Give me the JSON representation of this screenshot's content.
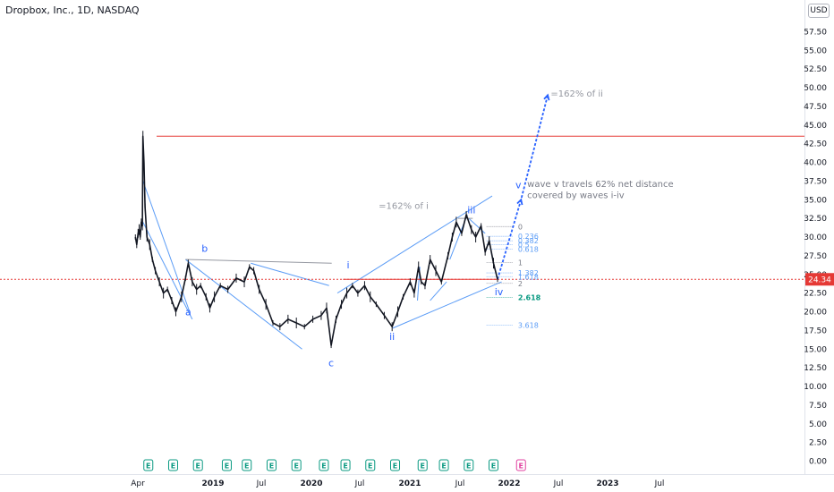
{
  "header": {
    "title": "Dropbox, Inc., 1D, NASDAQ",
    "currency": "USD"
  },
  "chart_data": {
    "type": "candlestick",
    "symbol": "Dropbox, Inc.",
    "interval": "1D",
    "exchange": "NASDAQ",
    "y_ticks": [
      "57.50",
      "55.00",
      "52.50",
      "50.00",
      "47.50",
      "45.00",
      "42.50",
      "40.00",
      "37.50",
      "35.00",
      "32.50",
      "30.00",
      "27.50",
      "25.00",
      "22.50",
      "20.00",
      "17.50",
      "15.00",
      "12.50",
      "10.00",
      "7.50",
      "5.00",
      "2.50",
      "0.00"
    ],
    "x_ticks": [
      "Apr",
      "2019",
      "Jul",
      "2020",
      "Jul",
      "2021",
      "Jul",
      "2022",
      "Jul",
      "2023",
      "Jul"
    ],
    "ylim": [
      0,
      58.5
    ],
    "last_price": "24.34",
    "resistance_level": 43.5,
    "price_path": [
      [
        "2018-03-23",
        30
      ],
      [
        "2018-03-28",
        29
      ],
      [
        "2018-04-02",
        30.5
      ],
      [
        "2018-04-06",
        31
      ],
      [
        "2018-04-10",
        30
      ],
      [
        "2018-04-14",
        32
      ],
      [
        "2018-04-18",
        31.5
      ],
      [
        "2018-04-20",
        43.5
      ],
      [
        "2018-04-24",
        40
      ],
      [
        "2018-04-28",
        34
      ],
      [
        "2018-05-05",
        30
      ],
      [
        "2018-05-15",
        29
      ],
      [
        "2018-05-25",
        27
      ],
      [
        "2018-06-05",
        25.5
      ],
      [
        "2018-06-20",
        24
      ],
      [
        "2018-07-05",
        22.5
      ],
      [
        "2018-07-20",
        23
      ],
      [
        "2018-08-05",
        21.5
      ],
      [
        "2018-08-20",
        20
      ],
      [
        "2018-09-10",
        22
      ],
      [
        "2018-09-25",
        24.5
      ],
      [
        "2018-10-05",
        26.5
      ],
      [
        "2018-10-20",
        24
      ],
      [
        "2018-11-05",
        23
      ],
      [
        "2018-11-20",
        23.5
      ],
      [
        "2018-12-10",
        22
      ],
      [
        "2018-12-24",
        20.5
      ],
      [
        "2019-01-10",
        22
      ],
      [
        "2019-02-01",
        23.5
      ],
      [
        "2019-03-01",
        23
      ],
      [
        "2019-04-01",
        24.5
      ],
      [
        "2019-05-01",
        24
      ],
      [
        "2019-05-20",
        26
      ],
      [
        "2019-06-05",
        25.5
      ],
      [
        "2019-06-25",
        23
      ],
      [
        "2019-07-20",
        21
      ],
      [
        "2019-08-15",
        18.5
      ],
      [
        "2019-09-10",
        18
      ],
      [
        "2019-10-10",
        19
      ],
      [
        "2019-11-10",
        18.5
      ],
      [
        "2019-12-10",
        18
      ],
      [
        "2020-01-10",
        19
      ],
      [
        "2020-02-10",
        19.5
      ],
      [
        "2020-03-01",
        20.5
      ],
      [
        "2020-03-18",
        15.5
      ],
      [
        "2020-04-05",
        19
      ],
      [
        "2020-04-25",
        21
      ],
      [
        "2020-05-15",
        22.5
      ],
      [
        "2020-06-05",
        23.5
      ],
      [
        "2020-06-25",
        22.5
      ],
      [
        "2020-07-20",
        23.5
      ],
      [
        "2020-08-10",
        22
      ],
      [
        "2020-09-01",
        21
      ],
      [
        "2020-10-01",
        19.5
      ],
      [
        "2020-10-30",
        18
      ],
      [
        "2020-11-20",
        20
      ],
      [
        "2020-12-10",
        22
      ],
      [
        "2021-01-05",
        24
      ],
      [
        "2021-01-20",
        22.5
      ],
      [
        "2021-02-05",
        26
      ],
      [
        "2021-02-15",
        24
      ],
      [
        "2021-03-01",
        23.5
      ],
      [
        "2021-03-20",
        27
      ],
      [
        "2021-04-10",
        25.5
      ],
      [
        "2021-05-01",
        24
      ],
      [
        "2021-05-25",
        27.5
      ],
      [
        "2021-06-10",
        30
      ],
      [
        "2021-06-25",
        32
      ],
      [
        "2021-07-15",
        30.5
      ],
      [
        "2021-08-01",
        33
      ],
      [
        "2021-08-20",
        31
      ],
      [
        "2021-09-05",
        30
      ],
      [
        "2021-09-25",
        31.5
      ],
      [
        "2021-10-10",
        28
      ],
      [
        "2021-10-25",
        29.5
      ],
      [
        "2021-11-10",
        26.5
      ],
      [
        "2021-11-25",
        24.34
      ]
    ],
    "fib_levels": [
      {
        "label": "0",
        "value": 31.4
      },
      {
        "label": "0.236",
        "value": 30.1
      },
      {
        "label": "0.382",
        "value": 29.5
      },
      {
        "label": "0.5",
        "value": 29.0
      },
      {
        "label": "0.618",
        "value": 28.4
      },
      {
        "label": "1",
        "value": 26.6
      },
      {
        "label": "1.382",
        "value": 25.2
      },
      {
        "label": "1.618",
        "value": 24.7
      },
      {
        "label": "2",
        "value": 23.8
      },
      {
        "label": "2.618",
        "value": 21.9
      },
      {
        "label": "3.618",
        "value": 18.2
      }
    ],
    "wave_labels": [
      "a",
      "b",
      "c",
      "i",
      "ii",
      "iii",
      "iv",
      "v"
    ],
    "annotations": [
      "=162% of ii",
      "=162% of i",
      "wave v travels 62% net distance",
      "covered by waves i-iv"
    ],
    "earnings_markers": [
      "E",
      "E",
      "E",
      "E",
      "E",
      "E",
      "E",
      "E",
      "E",
      "E",
      "E",
      "E",
      "E",
      "E",
      "E"
    ],
    "colors": {
      "candles": "#131722",
      "trendline": "#5b9cf6",
      "resistance": "#e53935",
      "projection": "#2962ff",
      "last_price": "#e53935",
      "fib_blue": "#5b9cf6",
      "fib_green": "#089981",
      "fib_gray": "#787b86",
      "earnings": "#089981",
      "earnings_upcoming": "#e040a0"
    }
  }
}
